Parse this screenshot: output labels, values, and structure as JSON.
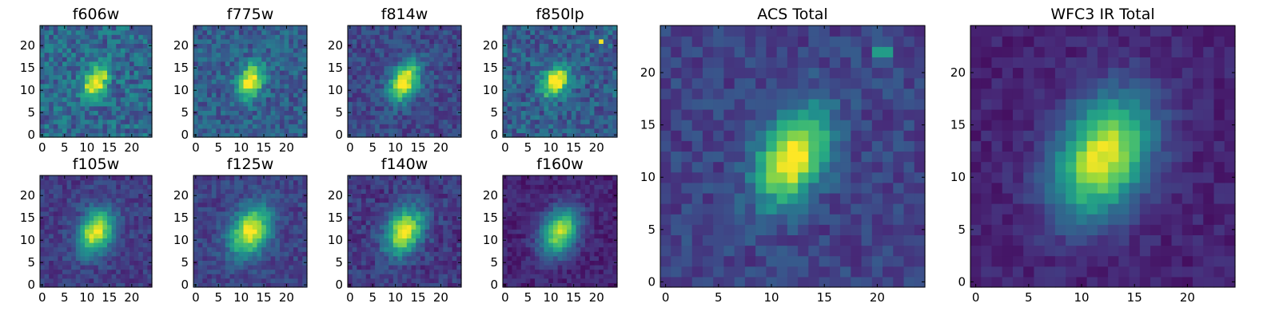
{
  "chart_data": {
    "type": "heatmap",
    "colormap": "viridis",
    "pixels": 25,
    "panels": [
      {
        "id": "f606w",
        "title": "f606w",
        "xticks": [
          "0",
          "5",
          "10",
          "15",
          "20"
        ],
        "yticks": [
          "0",
          "5",
          "10",
          "15",
          "20"
        ],
        "peak": [
          12,
          12
        ],
        "sigma": [
          1.6,
          2.6
        ],
        "angle": -0.5,
        "amp": 0.78,
        "background": 0.34,
        "noise": 0.16,
        "hot_pixels": []
      },
      {
        "id": "f775w",
        "title": "f775w",
        "xticks": [
          "0",
          "5",
          "10",
          "15",
          "20"
        ],
        "yticks": [
          "0",
          "5",
          "10",
          "15",
          "20"
        ],
        "peak": [
          12,
          12
        ],
        "sigma": [
          1.8,
          2.8
        ],
        "angle": -0.45,
        "amp": 0.78,
        "background": 0.3,
        "noise": 0.13,
        "hot_pixels": []
      },
      {
        "id": "f814w",
        "title": "f814w",
        "xticks": [
          "0",
          "5",
          "10",
          "15",
          "20"
        ],
        "yticks": [
          "0",
          "5",
          "10",
          "15",
          "20"
        ],
        "peak": [
          12,
          12
        ],
        "sigma": [
          2.0,
          3.2
        ],
        "angle": -0.45,
        "amp": 0.82,
        "background": 0.22,
        "noise": 0.11,
        "hot_pixels": []
      },
      {
        "id": "f850lp",
        "title": "f850lp",
        "xticks": [
          "0",
          "5",
          "10",
          "15",
          "20"
        ],
        "yticks": [
          "0",
          "5",
          "10",
          "15",
          "20"
        ],
        "peak": [
          11,
          12
        ],
        "sigma": [
          1.7,
          2.6
        ],
        "angle": -0.5,
        "amp": 0.78,
        "background": 0.3,
        "noise": 0.15,
        "hot_pixels": [
          [
            21,
            21,
            0.98
          ]
        ]
      },
      {
        "id": "f105w",
        "title": "f105w",
        "xticks": [
          "0",
          "5",
          "10",
          "15",
          "20"
        ],
        "yticks": [
          "0",
          "5",
          "10",
          "15",
          "20"
        ],
        "peak": [
          12,
          12
        ],
        "sigma": [
          2.5,
          3.6
        ],
        "angle": -0.45,
        "amp": 0.8,
        "background": 0.18,
        "noise": 0.09,
        "hot_pixels": []
      },
      {
        "id": "f125w",
        "title": "f125w",
        "xticks": [
          "0",
          "5",
          "10",
          "15",
          "20"
        ],
        "yticks": [
          "0",
          "5",
          "10",
          "15",
          "20"
        ],
        "peak": [
          12,
          12
        ],
        "sigma": [
          2.7,
          4.0
        ],
        "angle": -0.45,
        "amp": 0.8,
        "background": 0.2,
        "noise": 0.09,
        "hot_pixels": []
      },
      {
        "id": "f140w",
        "title": "f140w",
        "xticks": [
          "0",
          "5",
          "10",
          "15",
          "20"
        ],
        "yticks": [
          "0",
          "5",
          "10",
          "15",
          "20"
        ],
        "peak": [
          12,
          12
        ],
        "sigma": [
          2.6,
          3.8
        ],
        "angle": -0.45,
        "amp": 0.8,
        "background": 0.17,
        "noise": 0.1,
        "hot_pixels": []
      },
      {
        "id": "f160w",
        "title": "f160w",
        "xticks": [
          "0",
          "5",
          "10",
          "15",
          "20"
        ],
        "yticks": [
          "0",
          "5",
          "10",
          "15",
          "20"
        ],
        "peak": [
          12,
          12
        ],
        "sigma": [
          2.6,
          3.9
        ],
        "angle": -0.45,
        "amp": 0.8,
        "background": 0.1,
        "noise": 0.07,
        "hot_pixels": []
      },
      {
        "id": "acs-total",
        "title": "ACS Total",
        "xticks": [
          "0",
          "5",
          "10",
          "15",
          "20"
        ],
        "yticks": [
          "0",
          "5",
          "10",
          "15",
          "20"
        ],
        "peak": [
          12,
          12
        ],
        "sigma": [
          2.0,
          3.3
        ],
        "angle": -0.45,
        "amp": 0.88,
        "background": 0.2,
        "noise": 0.09,
        "hot_pixels": [
          [
            20,
            22,
            0.55
          ],
          [
            21,
            22,
            0.55
          ]
        ]
      },
      {
        "id": "wfc3-ir-total",
        "title": "WFC3 IR Total",
        "xticks": [
          "0",
          "5",
          "10",
          "15",
          "20"
        ],
        "yticks": [
          "0",
          "5",
          "10",
          "15",
          "20"
        ],
        "peak": [
          12,
          12
        ],
        "sigma": [
          2.8,
          4.2
        ],
        "angle": -0.45,
        "amp": 0.88,
        "background": 0.1,
        "noise": 0.06,
        "hot_pixels": []
      }
    ]
  }
}
